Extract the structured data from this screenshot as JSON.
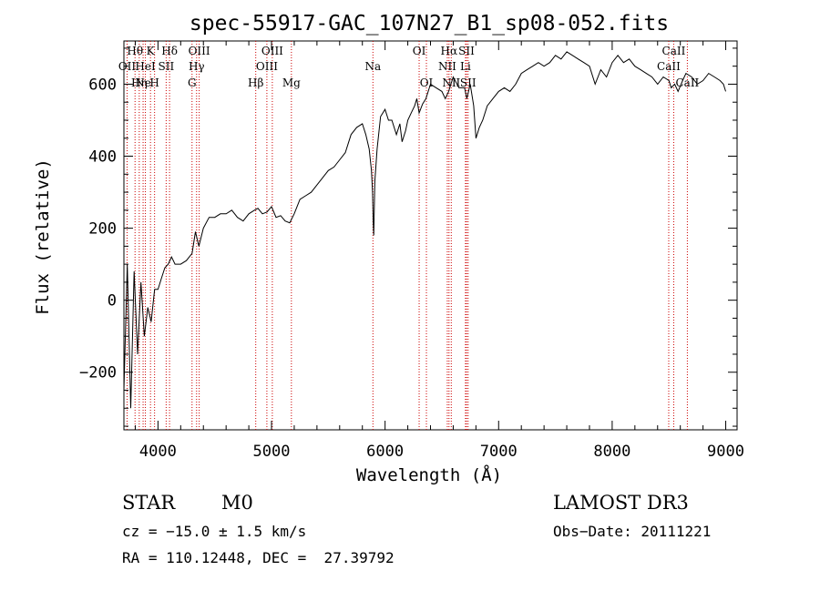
{
  "chart_data": {
    "type": "line",
    "title": "spec-55917-GAC_107N27_B1_sp08-052.fits",
    "xlabel": "Wavelength (Å)",
    "ylabel": "Flux (relative)",
    "xlim": [
      3700,
      9100
    ],
    "ylim": [
      -360,
      720
    ],
    "x_ticks": [
      4000,
      5000,
      6000,
      7000,
      8000,
      9000
    ],
    "y_ticks": [
      -200,
      0,
      200,
      400,
      600
    ],
    "grid": false,
    "series": [
      {
        "x": [
          3700,
          3730,
          3760,
          3790,
          3820,
          3850,
          3880,
          3910,
          3940,
          3970,
          4000,
          4030,
          4060,
          4090,
          4120,
          4150,
          4200,
          4250,
          4300,
          4330,
          4360,
          4400,
          4450,
          4500,
          4550,
          4600,
          4650,
          4700,
          4750,
          4800,
          4850,
          4880,
          4920,
          4960,
          5000,
          5040,
          5080,
          5120,
          5160,
          5200,
          5250,
          5300,
          5350,
          5400,
          5450,
          5500,
          5550,
          5600,
          5650,
          5700,
          5750,
          5800,
          5830,
          5860,
          5880,
          5890,
          5895,
          5900,
          5910,
          5930,
          5960,
          6000,
          6030,
          6060,
          6100,
          6130,
          6150,
          6180,
          6200,
          6230,
          6260,
          6280,
          6300,
          6330,
          6360,
          6400,
          6450,
          6500,
          6530,
          6560,
          6600,
          6650,
          6700,
          6720,
          6750,
          6780,
          6800,
          6830,
          6860,
          6900,
          6950,
          7000,
          7050,
          7100,
          7150,
          7200,
          7250,
          7300,
          7350,
          7400,
          7450,
          7500,
          7550,
          7600,
          7650,
          7700,
          7750,
          7800,
          7850,
          7900,
          7950,
          8000,
          8050,
          8100,
          8150,
          8200,
          8250,
          8300,
          8350,
          8400,
          8450,
          8500,
          8520,
          8550,
          8580,
          8620,
          8650,
          8700,
          8750,
          8800,
          8850,
          8900,
          8950,
          8980,
          9000
        ],
        "values": [
          -250,
          100,
          -300,
          80,
          -150,
          50,
          -100,
          -20,
          -60,
          30,
          30,
          60,
          90,
          100,
          120,
          100,
          100,
          110,
          130,
          190,
          150,
          200,
          230,
          230,
          240,
          240,
          250,
          230,
          220,
          240,
          250,
          255,
          240,
          245,
          260,
          230,
          235,
          220,
          215,
          240,
          280,
          290,
          300,
          320,
          340,
          360,
          370,
          390,
          410,
          460,
          480,
          490,
          460,
          420,
          360,
          300,
          220,
          180,
          330,
          420,
          510,
          530,
          500,
          500,
          460,
          490,
          440,
          470,
          500,
          520,
          540,
          560,
          520,
          545,
          560,
          600,
          590,
          580,
          560,
          580,
          620,
          590,
          590,
          560,
          600,
          540,
          450,
          480,
          500,
          540,
          560,
          580,
          590,
          580,
          600,
          630,
          640,
          650,
          660,
          650,
          660,
          680,
          670,
          690,
          680,
          670,
          660,
          650,
          600,
          640,
          620,
          660,
          680,
          660,
          670,
          650,
          640,
          630,
          620,
          600,
          620,
          610,
          590,
          600,
          580,
          610,
          630,
          620,
          600,
          610,
          630,
          620,
          610,
          600,
          580
        ]
      }
    ],
    "line_markers": [
      {
        "x": 3798,
        "label": "Hθ",
        "row": 0
      },
      {
        "x": 3835,
        "label": "Hη",
        "row": 2
      },
      {
        "x": 3869,
        "label": "Ne",
        "row": 2
      },
      {
        "x": 3889,
        "label": "HeI",
        "row": 1
      },
      {
        "x": 3934,
        "label": "K",
        "row": 0
      },
      {
        "x": 3970,
        "label": "H",
        "row": 2
      },
      {
        "x": 3728,
        "label": "OII",
        "row": 1
      },
      {
        "x": 4072,
        "label": "SII",
        "row": 1
      },
      {
        "x": 4102,
        "label": "Hδ",
        "row": 0
      },
      {
        "x": 4300,
        "label": "G",
        "row": 2
      },
      {
        "x": 4340,
        "label": "Hγ",
        "row": 1
      },
      {
        "x": 4363,
        "label": "OIII",
        "row": 0
      },
      {
        "x": 4861,
        "label": "Hβ",
        "row": 2
      },
      {
        "x": 4959,
        "label": "OIII",
        "row": 1
      },
      {
        "x": 5007,
        "label": "OIII",
        "row": 0
      },
      {
        "x": 5175,
        "label": "Mg",
        "row": 2
      },
      {
        "x": 5893,
        "label": "Na",
        "row": 1
      },
      {
        "x": 6300,
        "label": "OI",
        "row": 0
      },
      {
        "x": 6364,
        "label": "OI",
        "row": 2
      },
      {
        "x": 6548,
        "label": "NII",
        "row": 1
      },
      {
        "x": 6563,
        "label": "Hα",
        "row": 0
      },
      {
        "x": 6583,
        "label": "NII",
        "row": 2
      },
      {
        "x": 6708,
        "label": "Li",
        "row": 1
      },
      {
        "x": 6717,
        "label": "SII",
        "row": 0
      },
      {
        "x": 6731,
        "label": "SII",
        "row": 2
      },
      {
        "x": 8498,
        "label": "CaII",
        "row": 1
      },
      {
        "x": 8542,
        "label": "CaII",
        "row": 0
      },
      {
        "x": 8662,
        "label": "CaII",
        "row": 2
      }
    ],
    "marker_color": "#cc0000"
  },
  "info": {
    "object_class": "STAR",
    "subclass": "M0",
    "survey": "LAMOST DR3",
    "redshift": "cz = −15.0 ± 1.5 km/s",
    "obs_date": "Obs−Date: 20111221",
    "coords": "RA = 110.12448, DEC =  27.39792"
  }
}
